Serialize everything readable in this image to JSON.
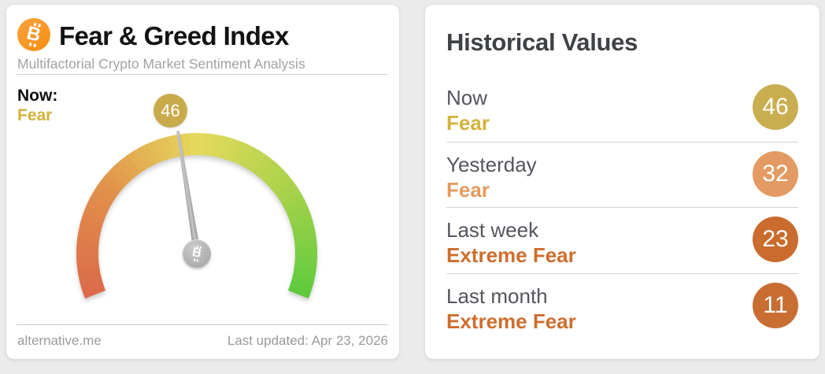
{
  "page": {
    "background": "#ebebeb"
  },
  "fear_greed_card": {
    "title": "Fear & Greed Index",
    "subtitle": "Multifactorial Crypto Market Sentiment Analysis",
    "bitcoin_icon": "bitcoin-logo",
    "brand_orange": "#f7941d",
    "now_label": "Now:",
    "now_status": "Fear",
    "now_status_color": "#d4b23c",
    "gauge": {
      "value": 46,
      "min": 0,
      "max": 100,
      "start_angle_deg": 248,
      "sweep_deg": 224,
      "badge_color": "#c9ab4c",
      "needle_color": "#a3a3a3",
      "arc_colors": [
        "#db6a4a",
        "#e18f4a",
        "#e5d95c",
        "#a7d24a",
        "#5ccb3d"
      ]
    },
    "footer": {
      "site": "alternative.me",
      "last_updated": "Last updated: Apr 23, 2026"
    }
  },
  "historical_card": {
    "title": "Historical Values",
    "rows": [
      {
        "period": "Now",
        "status": "Fear",
        "value": "46",
        "status_color": "#d4b23c",
        "badge_color": "#c9ae50"
      },
      {
        "period": "Yesterday",
        "status": "Fear",
        "value": "32",
        "status_color": "#e69a5d",
        "badge_color": "#e39b63"
      },
      {
        "period": "Last week",
        "status": "Extreme Fear",
        "value": "23",
        "status_color": "#cd6e2e",
        "badge_color": "#c96c2d"
      },
      {
        "period": "Last month",
        "status": "Extreme Fear",
        "value": "11",
        "status_color": "#cd6e2e",
        "badge_color": "#c96e33"
      }
    ]
  }
}
